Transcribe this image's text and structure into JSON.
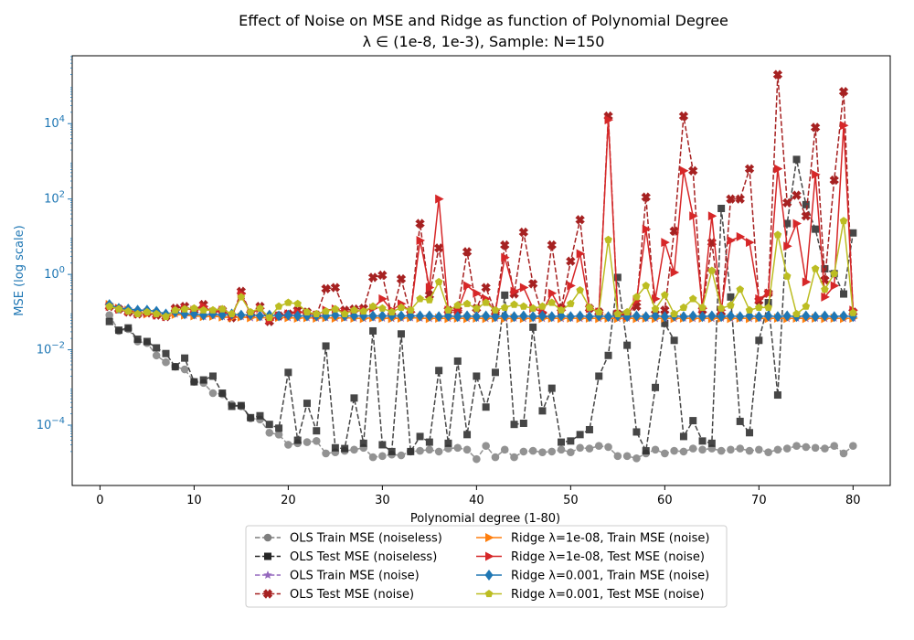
{
  "chart_data": {
    "type": "line",
    "title": "Effect of Noise on MSE and Ridge as function of Polynomial Degree",
    "subtitle": "λ ∈ (1e-8, 1e-3), Sample: N=150",
    "xlabel": "Polynomial degree (1-80)",
    "ylabel": "MSE (log scale)",
    "yscale": "log",
    "xlim": [
      -2.95,
      83.95
    ],
    "ylim_log10": [
      -5.6,
      5.8
    ],
    "grid": false,
    "legend_position": "bottom-center",
    "x_ticks": [
      "0",
      "10",
      "20",
      "30",
      "40",
      "50",
      "60",
      "70",
      "80"
    ],
    "y_ticks": [
      "10^-4",
      "10^-2",
      "10^0",
      "10^2",
      "10^4"
    ],
    "colors": {
      "ylabel": "#1f77b4",
      "ols_train_noiseless": "#7f7f7f",
      "ols_test_noiseless": "#262626",
      "ols_train_noise": "#9467bd",
      "ols_test_noise": "#a62121",
      "ridge_small_train": "#ff7f0e",
      "ridge_small_test": "#d62728",
      "ridge_large_train": "#1f77b4",
      "ridge_large_test": "#bcbd22"
    },
    "x": [
      1,
      2,
      3,
      4,
      5,
      6,
      7,
      8,
      9,
      10,
      11,
      12,
      13,
      14,
      15,
      16,
      17,
      18,
      19,
      20,
      21,
      22,
      23,
      24,
      25,
      26,
      27,
      28,
      29,
      30,
      31,
      32,
      33,
      34,
      35,
      36,
      37,
      38,
      39,
      40,
      41,
      42,
      43,
      44,
      45,
      46,
      47,
      48,
      49,
      50,
      51,
      52,
      53,
      54,
      55,
      56,
      57,
      58,
      59,
      60,
      61,
      62,
      63,
      64,
      65,
      66,
      67,
      68,
      69,
      70,
      71,
      72,
      73,
      74,
      75,
      76,
      77,
      78,
      79,
      80
    ],
    "series": [
      {
        "name": "OLS Train MSE (noiseless)",
        "key": "ols_train_noiseless",
        "dashed": true,
        "marker": "circle",
        "log10": [
          -1.08,
          -1.5,
          -1.45,
          -1.78,
          -1.82,
          -2.15,
          -2.33,
          -2.45,
          -2.52,
          -2.85,
          -2.88,
          -3.15,
          -3.18,
          -3.45,
          -3.5,
          -3.82,
          -3.85,
          -4.2,
          -4.25,
          -4.52,
          -4.48,
          -4.45,
          -4.42,
          -4.75,
          -4.72,
          -4.68,
          -4.65,
          -4.6,
          -4.85,
          -4.82,
          -4.78,
          -4.8,
          -4.7,
          -4.68,
          -4.65,
          -4.7,
          -4.62,
          -4.6,
          -4.65,
          -4.9,
          -4.55,
          -4.85,
          -4.65,
          -4.85,
          -4.7,
          -4.68,
          -4.72,
          -4.7,
          -4.65,
          -4.72,
          -4.6,
          -4.62,
          -4.55,
          -4.58,
          -4.82,
          -4.82,
          -4.88,
          -4.75,
          -4.65,
          -4.75,
          -4.68,
          -4.7,
          -4.62,
          -4.65,
          -4.62,
          -4.68,
          -4.65,
          -4.62,
          -4.68,
          -4.65,
          -4.72,
          -4.65,
          -4.62,
          -4.55,
          -4.58,
          -4.6,
          -4.62,
          -4.55,
          -4.75,
          -4.55
        ]
      },
      {
        "name": "OLS Test MSE (noiseless)",
        "key": "ols_test_noiseless",
        "dashed": true,
        "marker": "square",
        "log10": [
          -1.25,
          -1.48,
          -1.42,
          -1.72,
          -1.78,
          -1.95,
          -2.1,
          -2.45,
          -2.22,
          -2.85,
          -2.8,
          -2.7,
          -3.15,
          -3.5,
          -3.48,
          -3.8,
          -3.75,
          -3.98,
          -4.08,
          -2.6,
          -4.4,
          -3.42,
          -4.15,
          -1.9,
          -4.6,
          -4.62,
          -3.28,
          -4.48,
          -1.5,
          -4.52,
          -4.7,
          -1.58,
          -4.7,
          -4.3,
          -4.45,
          -2.55,
          -4.48,
          -2.3,
          -4.25,
          -2.7,
          -3.52,
          -2.6,
          -0.55,
          -3.98,
          -3.95,
          -1.4,
          -3.62,
          -3.02,
          -4.45,
          -4.42,
          -4.25,
          -4.12,
          -2.7,
          -2.15,
          -0.08,
          -1.88,
          -4.18,
          -4.68,
          -3.0,
          -1.3,
          -1.75,
          -4.3,
          -3.88,
          -4.42,
          -4.48,
          1.75,
          -0.6,
          -3.9,
          -4.2,
          -1.75,
          -0.75,
          -3.2,
          1.35,
          3.05,
          1.85,
          1.2,
          0.15,
          0.02,
          -0.52,
          1.1
        ]
      },
      {
        "name": "OLS Train MSE (noise)",
        "key": "ols_train_noise",
        "dashed": true,
        "marker": "star",
        "log10": [
          -0.8,
          -0.88,
          -0.92,
          -1.02,
          -1.05,
          -1.02,
          -1.12,
          -1.05,
          -1.08,
          -1.1,
          -1.12,
          -1.1,
          -1.12,
          -1.15,
          -1.12,
          -1.15,
          -1.14,
          -1.16,
          -1.14,
          -1.15,
          -1.16,
          -1.15,
          -1.16,
          -1.15,
          -1.16,
          -1.15,
          -1.16,
          -1.17,
          -1.15,
          -1.16,
          -1.17,
          -1.16,
          -1.15,
          -1.16,
          -1.17,
          -1.16,
          -1.17,
          -1.16,
          -1.17,
          -1.16,
          -1.17,
          -1.16,
          -1.17,
          -1.16,
          -1.17,
          -1.16,
          -1.17,
          -1.16,
          -1.17,
          -1.16,
          -1.17,
          -1.16,
          -1.17,
          -1.16,
          -1.17,
          -1.16,
          -1.17,
          -1.16,
          -1.17,
          -1.16,
          -1.17,
          -1.16,
          -1.17,
          -1.16,
          -1.17,
          -1.16,
          -1.17,
          -1.16,
          -1.17,
          -1.16,
          -1.17,
          -1.16,
          -1.17,
          -1.16,
          -1.17,
          -1.16,
          -1.17,
          -1.16,
          -1.17,
          -1.16
        ]
      },
      {
        "name": "OLS Test MSE (noise)",
        "key": "ols_test_noise",
        "dashed": true,
        "marker": "x",
        "log10": [
          -0.85,
          -0.92,
          -1.0,
          -1.05,
          -1.02,
          -1.08,
          -1.12,
          -0.9,
          -0.85,
          -0.95,
          -0.8,
          -1.0,
          -0.95,
          -1.15,
          -0.45,
          -1.05,
          -0.85,
          -1.25,
          -1.1,
          -1.05,
          -0.95,
          -1.0,
          -1.08,
          -0.38,
          -0.35,
          -0.95,
          -0.92,
          -0.9,
          -0.08,
          -0.02,
          -1.1,
          -0.12,
          -1.05,
          1.35,
          -0.55,
          0.7,
          -0.95,
          -0.95,
          0.6,
          -0.9,
          -0.35,
          -1.0,
          0.78,
          -0.52,
          1.12,
          -0.25,
          -1.08,
          0.78,
          -0.9,
          0.35,
          1.45,
          -0.9,
          -1.0,
          4.2,
          -1.05,
          -1.1,
          -0.85,
          2.05,
          -1.05,
          -0.95,
          1.15,
          4.2,
          2.75,
          -0.95,
          0.85,
          -1.1,
          2.0,
          2.0,
          2.8,
          -0.7,
          -0.5,
          5.3,
          1.9,
          2.1,
          1.55,
          3.9,
          -0.15,
          2.5,
          4.85,
          -1.0
        ]
      },
      {
        "name": "Ridge λ=1e-08, Train MSE (noise)",
        "key": "ridge_small_train",
        "dashed": false,
        "marker": "triangle-right",
        "log10": [
          -0.8,
          -0.9,
          -0.95,
          -1.02,
          -1.05,
          -1.04,
          -1.12,
          -1.06,
          -1.08,
          -1.1,
          -1.12,
          -1.11,
          -1.13,
          -1.15,
          -1.13,
          -1.15,
          -1.14,
          -1.16,
          -1.14,
          -1.15,
          -1.16,
          -1.15,
          -1.16,
          -1.15,
          -1.16,
          -1.15,
          -1.16,
          -1.17,
          -1.15,
          -1.16,
          -1.17,
          -1.16,
          -1.15,
          -1.16,
          -1.17,
          -1.16,
          -1.17,
          -1.16,
          -1.17,
          -1.16,
          -1.17,
          -1.16,
          -1.17,
          -1.16,
          -1.17,
          -1.16,
          -1.17,
          -1.16,
          -1.17,
          -1.16,
          -1.17,
          -1.16,
          -1.17,
          -1.16,
          -1.17,
          -1.16,
          -1.17,
          -1.16,
          -1.17,
          -1.16,
          -1.17,
          -1.16,
          -1.17,
          -1.16,
          -1.17,
          -1.16,
          -1.17,
          -1.16,
          -1.17,
          -1.16,
          -1.17,
          -1.16,
          -1.17,
          -1.16,
          -1.17,
          -1.16,
          -1.17,
          -1.16,
          -1.17,
          -1.16
        ]
      },
      {
        "name": "Ridge λ=1e-08, Test MSE (noise)",
        "key": "ridge_small_test",
        "dashed": false,
        "marker": "triangle-right",
        "log10": [
          -0.85,
          -0.92,
          -0.98,
          -1.05,
          -1.02,
          -1.08,
          -1.12,
          -0.95,
          -0.9,
          -0.95,
          -0.85,
          -1.0,
          -0.95,
          -1.12,
          -0.52,
          -1.05,
          -0.9,
          -1.22,
          -1.1,
          -1.05,
          -1.0,
          -1.02,
          -1.08,
          -0.95,
          -0.92,
          -1.0,
          -0.98,
          -0.95,
          -0.9,
          -0.65,
          -0.95,
          -0.78,
          -1.0,
          0.9,
          -0.35,
          2.0,
          -0.95,
          -0.95,
          -0.3,
          -0.5,
          -0.65,
          -1.0,
          0.45,
          -0.45,
          -0.35,
          -0.9,
          -1.0,
          -0.5,
          -0.95,
          -0.3,
          0.55,
          -0.9,
          -1.0,
          4.1,
          -1.05,
          -1.1,
          -0.7,
          1.2,
          -0.65,
          0.85,
          0.05,
          2.75,
          1.55,
          -0.9,
          1.55,
          -0.95,
          0.9,
          1.0,
          0.85,
          -0.65,
          -0.5,
          2.8,
          0.75,
          1.35,
          -0.2,
          2.65,
          -0.6,
          -0.3,
          3.95,
          -0.95
        ]
      },
      {
        "name": "Ridge λ=0.001, Train MSE (noise)",
        "key": "ridge_large_train",
        "dashed": false,
        "marker": "diamond",
        "log10": [
          -0.8,
          -0.9,
          -0.92,
          -0.95,
          -0.95,
          -0.98,
          -1.05,
          -1.0,
          -1.05,
          -1.05,
          -1.08,
          -1.05,
          -1.08,
          -1.05,
          -1.08,
          -1.07,
          -1.1,
          -1.08,
          -1.1,
          -1.08,
          -1.1,
          -1.1,
          -1.1,
          -1.1,
          -1.08,
          -1.1,
          -1.1,
          -1.1,
          -1.1,
          -1.1,
          -1.1,
          -1.1,
          -1.1,
          -1.1,
          -1.1,
          -1.12,
          -1.1,
          -1.12,
          -1.1,
          -1.12,
          -1.1,
          -1.12,
          -1.1,
          -1.12,
          -1.1,
          -1.12,
          -1.1,
          -1.12,
          -1.1,
          -1.12,
          -1.1,
          -1.12,
          -1.1,
          -1.12,
          -1.1,
          -1.12,
          -1.1,
          -1.12,
          -1.1,
          -1.12,
          -1.1,
          -1.12,
          -1.1,
          -1.12,
          -1.1,
          -1.12,
          -1.1,
          -1.12,
          -1.1,
          -1.12,
          -1.1,
          -1.12,
          -1.1,
          -1.12,
          -1.1,
          -1.12,
          -1.1,
          -1.12,
          -1.1,
          -1.12
        ]
      },
      {
        "name": "Ridge λ=0.001, Test MSE (noise)",
        "key": "ridge_large_test",
        "dashed": false,
        "marker": "pentagon",
        "log10": [
          -0.85,
          -0.92,
          -0.98,
          -1.05,
          -1.0,
          -1.05,
          -1.12,
          -0.95,
          -0.92,
          -0.9,
          -0.95,
          -0.95,
          -0.92,
          -1.05,
          -0.6,
          -1.0,
          -0.9,
          -1.15,
          -0.85,
          -0.75,
          -0.78,
          -1.0,
          -1.05,
          -0.98,
          -0.92,
          -1.05,
          -0.95,
          -0.98,
          -0.85,
          -0.9,
          -1.0,
          -0.88,
          -0.95,
          -0.65,
          -0.68,
          -0.2,
          -0.95,
          -0.82,
          -0.78,
          -0.9,
          -0.75,
          -0.95,
          -0.88,
          -0.8,
          -0.85,
          -0.9,
          -0.85,
          -0.75,
          -0.95,
          -0.78,
          -0.42,
          -0.88,
          -1.0,
          0.92,
          -1.05,
          -1.0,
          -0.6,
          -0.3,
          -0.92,
          -0.55,
          -1.05,
          -0.88,
          -0.65,
          -0.88,
          0.1,
          -0.9,
          -0.82,
          -0.4,
          -0.95,
          -0.88,
          -0.88,
          1.05,
          -0.05,
          -1.05,
          -0.85,
          0.15,
          -0.4,
          0.02,
          1.42,
          -1.02
        ]
      }
    ]
  }
}
